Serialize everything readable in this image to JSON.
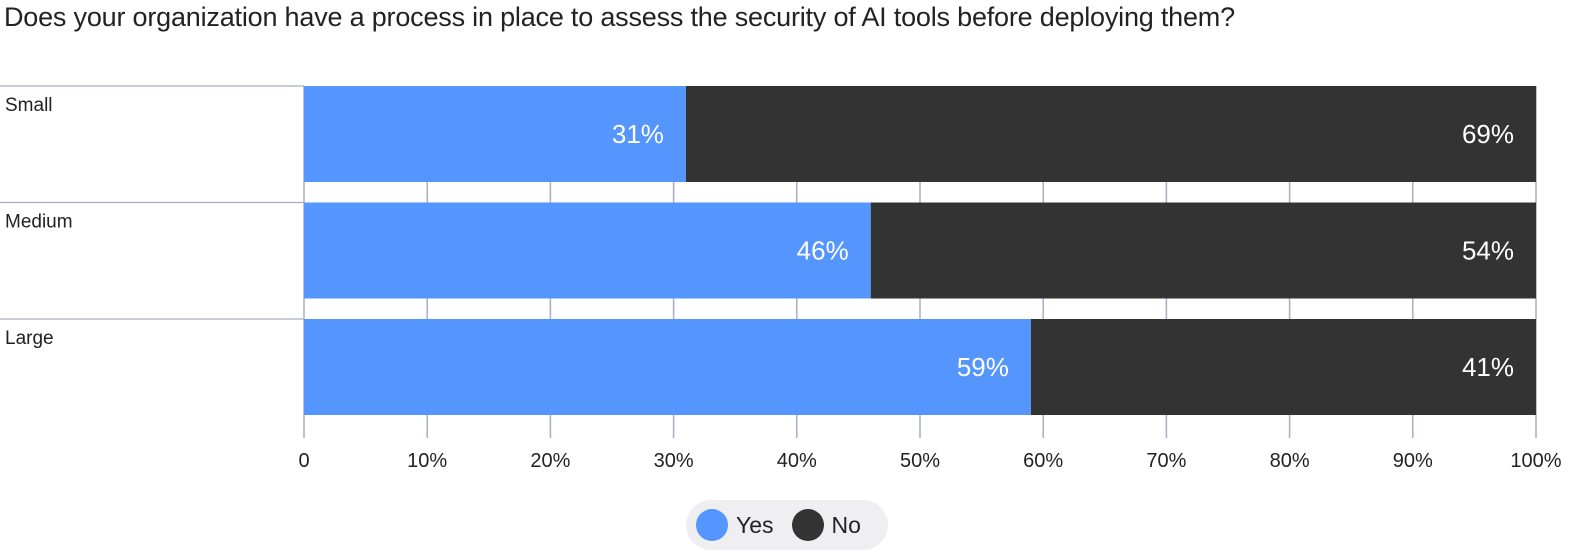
{
  "chart_data": {
    "type": "bar",
    "orientation": "horizontal",
    "stacked": true,
    "title": "Does your organization have a process in place to assess the security of AI tools before deploying them?",
    "categories": [
      "Small",
      "Medium",
      "Large"
    ],
    "series": [
      {
        "name": "Yes",
        "values": [
          31,
          46,
          59
        ],
        "labels": [
          "31%",
          "46%",
          "59%"
        ],
        "color": "#5595fe"
      },
      {
        "name": "No",
        "values": [
          69,
          54,
          41
        ],
        "labels": [
          "69%",
          "54%",
          "41%"
        ],
        "color": "#333333"
      }
    ],
    "xlim": [
      0,
      100
    ],
    "x_ticks": [
      0,
      10,
      20,
      30,
      40,
      50,
      60,
      70,
      80,
      90,
      100
    ],
    "x_tick_labels": [
      "0",
      "10%",
      "20%",
      "30%",
      "40%",
      "50%",
      "60%",
      "70%",
      "80%",
      "90%",
      "100%"
    ],
    "xlabel": "",
    "ylabel": "",
    "grid": true,
    "legend_position": "bottom-center"
  }
}
